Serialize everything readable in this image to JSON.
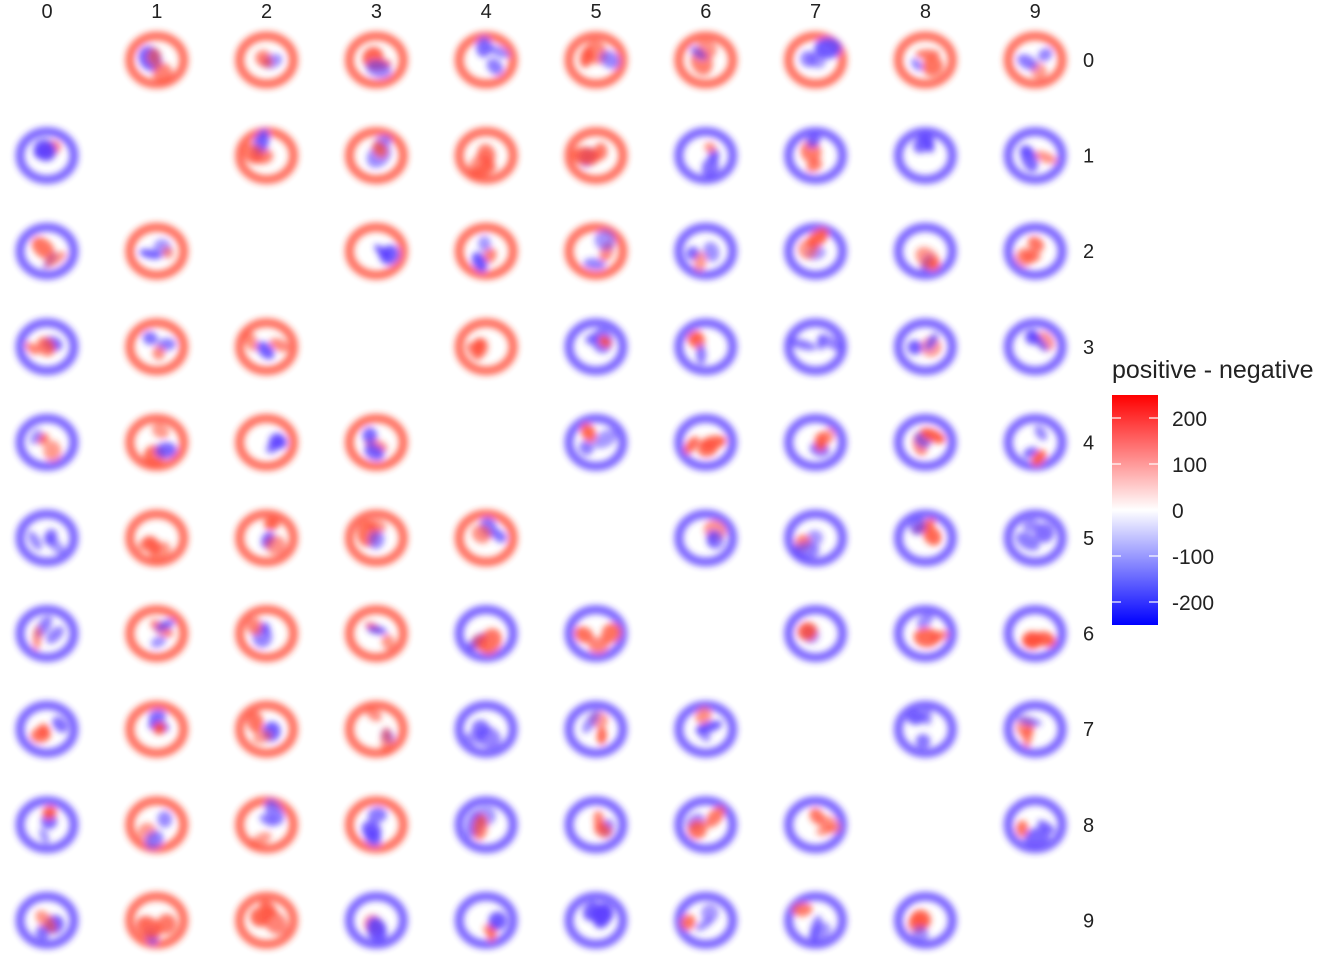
{
  "chart_data": {
    "type": "heatmap",
    "title": "",
    "xlabel": "",
    "ylabel": "",
    "columns": [
      "0",
      "1",
      "2",
      "3",
      "4",
      "5",
      "6",
      "7",
      "8",
      "9"
    ],
    "rows": [
      "0",
      "1",
      "2",
      "3",
      "4",
      "5",
      "6",
      "7",
      "8",
      "9"
    ],
    "diagonal_empty": true,
    "legend": {
      "title": "positive - negative",
      "position": "right",
      "ticks": [
        200,
        100,
        0,
        -100,
        -200
      ],
      "range": [
        -250,
        250
      ],
      "low_color": "#0000ff",
      "mid_color": "#ffffff",
      "high_color": "#ff0000"
    }
  }
}
